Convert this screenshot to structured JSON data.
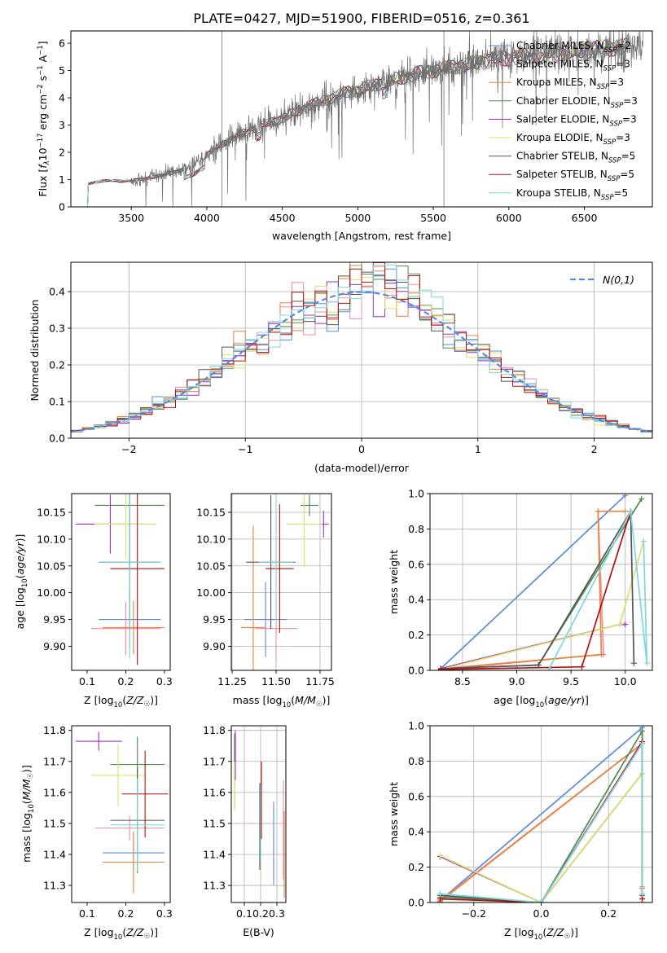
{
  "figure_title": "PLATE=0427, MJD=51900, FIBERID=0516, z=0.361",
  "series_colors": {
    "Chabrier MILES": "#5a8bd6",
    "Salpeter MILES": "#f08ca0",
    "Kroupa MILES": "#e8823c",
    "Chabrier ELODIE": "#4f8a4f",
    "Salpeter ELODIE": "#9b30c8",
    "Kroupa ELODIE": "#d9e36a",
    "Chabrier STELIB": "#555555",
    "Salpeter STELIB": "#b01010",
    "Kroupa STELIB": "#7fd6e0"
  },
  "chart_data": [
    {
      "id": "spectrum",
      "type": "line",
      "xlabel": "wavelength [Angstrom, rest frame]",
      "ylabel_parts": [
        "Flux [",
        "f",
        "λ",
        "10",
        "−17",
        " erg cm",
        "−2",
        " s",
        "−1",
        " A",
        "−1",
        "]"
      ],
      "xlim": [
        3100,
        6950
      ],
      "ylim": [
        0,
        6.45
      ],
      "xticks": [
        3500,
        4000,
        4500,
        5000,
        5500,
        6000,
        6500
      ],
      "yticks": [
        0,
        1,
        2,
        3,
        4,
        5,
        6
      ],
      "legend_position": "right",
      "legend": [
        {
          "series": "Chabrier MILES",
          "label": "Chabrier MILES, N",
          "sub": "SSP",
          "tail": "=2"
        },
        {
          "series": "Salpeter MILES",
          "label": "Salpeter MILES, N",
          "sub": "SSP",
          "tail": "=3"
        },
        {
          "series": "Kroupa MILES",
          "label": "Kroupa MILES, N",
          "sub": "SSP",
          "tail": "=3"
        },
        {
          "series": "Chabrier ELODIE",
          "label": "Chabrier ELODIE, N",
          "sub": "SSP",
          "tail": "=3"
        },
        {
          "series": "Salpeter ELODIE",
          "label": "Salpeter ELODIE, N",
          "sub": "SSP",
          "tail": "=3"
        },
        {
          "series": "Kroupa ELODIE",
          "label": "Kroupa ELODIE, N",
          "sub": "SSP",
          "tail": "=3"
        },
        {
          "series": "Chabrier STELIB",
          "label": "Chabrier STELIB, N",
          "sub": "SSP",
          "tail": "=5"
        },
        {
          "series": "Salpeter STELIB",
          "label": "Salpeter STELIB, N",
          "sub": "SSP",
          "tail": "=5"
        },
        {
          "series": "Kroupa STELIB",
          "label": "Kroupa STELIB, N",
          "sub": "SSP",
          "tail": "=5"
        }
      ],
      "continuum": [
        [
          3200,
          0.0
        ],
        [
          3215,
          0.85
        ],
        [
          3300,
          0.95
        ],
        [
          3500,
          0.95
        ],
        [
          3600,
          1.05
        ],
        [
          3700,
          1.15
        ],
        [
          3800,
          1.3
        ],
        [
          3900,
          1.5
        ],
        [
          4000,
          1.9
        ],
        [
          4100,
          2.3
        ],
        [
          4200,
          2.6
        ],
        [
          4300,
          2.85
        ],
        [
          4400,
          3.05
        ],
        [
          4500,
          3.25
        ],
        [
          4600,
          3.5
        ],
        [
          4700,
          3.75
        ],
        [
          4800,
          3.95
        ],
        [
          4900,
          4.15
        ],
        [
          5000,
          4.3
        ],
        [
          5100,
          4.45
        ],
        [
          5200,
          4.6
        ],
        [
          5300,
          4.75
        ],
        [
          5400,
          4.9
        ],
        [
          5500,
          5.0
        ],
        [
          5600,
          5.1
        ],
        [
          5700,
          5.2
        ],
        [
          5800,
          5.3
        ],
        [
          5900,
          5.4
        ],
        [
          6000,
          5.45
        ],
        [
          6100,
          5.5
        ],
        [
          6200,
          5.6
        ],
        [
          6300,
          5.65
        ],
        [
          6400,
          5.7
        ],
        [
          6500,
          5.75
        ],
        [
          6600,
          5.8
        ],
        [
          6700,
          5.85
        ],
        [
          6800,
          5.85
        ]
      ],
      "data_start": 3500,
      "data_end": 6890,
      "model_end": 6790,
      "spike_lines": [
        4100,
        5570
      ]
    },
    {
      "id": "residuals",
      "type": "step",
      "xlabel": "(data-model)/error",
      "ylabel": "Normed distribution",
      "xlim": [
        -2.5,
        2.5
      ],
      "ylim": [
        0,
        0.48
      ],
      "xticks": [
        -2,
        -1,
        0,
        1,
        2
      ],
      "yticks": [
        0.0,
        0.1,
        0.2,
        0.3,
        0.4
      ],
      "grid": true,
      "legend_position": "top-right",
      "reference_label": "N(0,1)",
      "reference_color": "#5a8bd6",
      "bin_width": 0.1
    },
    {
      "id": "age-vs-Z",
      "type": "scatter",
      "xlabel": "Z [log10(Z/Z☉)]",
      "ylabel": "age [log10(age/yr)]",
      "xlim": [
        0.06,
        0.315
      ],
      "ylim": [
        9.855,
        10.185
      ],
      "xticks": [
        0.1,
        0.2,
        0.3
      ],
      "yticks": [
        9.9,
        9.95,
        10.0,
        10.05,
        10.1,
        10.15
      ],
      "grid": false,
      "points": [
        {
          "series": "Chabrier MILES",
          "x": 0.21,
          "xerr": 0.08,
          "y": 9.95,
          "yerr": 0.055
        },
        {
          "series": "Salpeter MILES",
          "x": 0.2,
          "xerr": 0.09,
          "y": 9.933,
          "yerr": 0.05
        },
        {
          "series": "Kroupa MILES",
          "x": 0.22,
          "xerr": 0.08,
          "y": 9.935,
          "yerr": 0.05
        },
        {
          "series": "Chabrier ELODIE",
          "x": 0.21,
          "xerr": 0.09,
          "y": 10.163,
          "yerr": 0.12
        },
        {
          "series": "Salpeter ELODIE",
          "x": 0.16,
          "xerr": 0.09,
          "y": 10.128,
          "yerr": 0.055
        },
        {
          "series": "Kroupa ELODIE",
          "x": 0.2,
          "xerr": 0.08,
          "y": 10.128,
          "yerr": 0.065
        },
        {
          "series": "Chabrier STELIB",
          "x": 0.21,
          "xerr": 0.08,
          "y": 10.057,
          "yerr": 0.125
        },
        {
          "series": "Salpeter STELIB",
          "x": 0.23,
          "xerr": 0.07,
          "y": 10.045,
          "yerr": 0.18
        },
        {
          "series": "Kroupa STELIB",
          "x": 0.21,
          "xerr": 0.08,
          "y": 10.057,
          "yerr": 0.18
        }
      ]
    },
    {
      "id": "age-vs-mass",
      "type": "scatter",
      "xlabel": "mass [log10(M/M☉)]",
      "ylabel": "",
      "xlim": [
        11.245,
        11.815
      ],
      "ylim": [
        9.855,
        10.185
      ],
      "xticks": [
        11.25,
        11.5,
        11.75
      ],
      "yticks": [
        9.9,
        9.95,
        10.0,
        10.05,
        10.1,
        10.15
      ],
      "grid": true,
      "points": [
        {
          "series": "Chabrier MILES",
          "x": 11.44,
          "xerr": 0.12,
          "y": 9.95,
          "yerr": 0.07
        },
        {
          "series": "Salpeter MILES",
          "x": 11.5,
          "xerr": 0.12,
          "y": 9.933,
          "yerr": 0.06
        },
        {
          "series": "Kroupa MILES",
          "x": 11.37,
          "xerr": 0.07,
          "y": 9.935,
          "yerr": 0.19
        },
        {
          "series": "Chabrier ELODIE",
          "x": 11.69,
          "xerr": 0.05,
          "y": 10.163,
          "yerr": 0.02
        },
        {
          "series": "Salpeter ELODIE",
          "x": 11.77,
          "xerr": 0.03,
          "y": 10.128,
          "yerr": 0.025
        },
        {
          "series": "Kroupa ELODIE",
          "x": 11.66,
          "xerr": 0.1,
          "y": 10.128,
          "yerr": 0.08
        },
        {
          "series": "Chabrier STELIB",
          "x": 11.47,
          "xerr": 0.14,
          "y": 10.057,
          "yerr": 0.125
        },
        {
          "series": "Salpeter STELIB",
          "x": 11.52,
          "xerr": 0.08,
          "y": 10.045,
          "yerr": 0.12
        },
        {
          "series": "Kroupa STELIB",
          "x": 11.5,
          "xerr": 0.1,
          "y": 10.057,
          "yerr": 0.12
        }
      ]
    },
    {
      "id": "age-weights",
      "type": "line",
      "xlabel": "age [log10(age/yr)]",
      "ylabel": "mass weight",
      "xlim": [
        8.2,
        10.25
      ],
      "ylim": [
        0,
        1.0
      ],
      "xticks": [
        8.5,
        9.0,
        9.5,
        10.0
      ],
      "yticks": [
        0.0,
        0.2,
        0.4,
        0.6,
        0.8,
        1.0
      ],
      "grid": true,
      "series": [
        {
          "name": "Chabrier MILES",
          "x": [
            8.3,
            10.0
          ],
          "y": [
            0.01,
            0.99
          ]
        },
        {
          "name": "Salpeter MILES",
          "x": [
            8.3,
            9.8,
            9.75
          ],
          "y": [
            0.01,
            0.09,
            0.9
          ]
        },
        {
          "name": "Kroupa MILES",
          "x": [
            8.3,
            9.78,
            9.75,
            10.0
          ],
          "y": [
            0.005,
            0.09,
            0.9,
            0.9
          ]
        },
        {
          "name": "Chabrier ELODIE",
          "x": [
            8.3,
            9.2,
            10.15
          ],
          "y": [
            0.01,
            0.03,
            0.97
          ]
        },
        {
          "name": "Salpeter ELODIE",
          "x": [
            8.3,
            9.95,
            10.0
          ],
          "y": [
            0.01,
            0.26,
            0.26
          ]
        },
        {
          "name": "Kroupa ELODIE",
          "x": [
            8.3,
            9.95,
            10.17
          ],
          "y": [
            0.005,
            0.26,
            0.73
          ]
        },
        {
          "name": "Chabrier STELIB",
          "x": [
            8.3,
            9.2,
            10.05,
            10.08
          ],
          "y": [
            0.01,
            0.03,
            0.9,
            0.04
          ]
        },
        {
          "name": "Salpeter STELIB",
          "x": [
            8.3,
            9.6,
            10.05
          ],
          "y": [
            0.005,
            0.02,
            0.9
          ]
        },
        {
          "name": "Kroupa STELIB",
          "x": [
            9.3,
            10.05,
            10.2,
            10.17
          ],
          "y": [
            0.01,
            0.9,
            0.04,
            0.73
          ]
        }
      ]
    },
    {
      "id": "mass-vs-Z",
      "type": "scatter",
      "xlabel": "Z [log10(Z/Z☉)]",
      "ylabel": "mass [log10(M/M☉)]",
      "xlim": [
        0.06,
        0.315
      ],
      "ylim": [
        11.245,
        11.815
      ],
      "xticks": [
        0.1,
        0.2,
        0.3
      ],
      "yticks": [
        11.3,
        11.4,
        11.5,
        11.6,
        11.7,
        11.8
      ],
      "grid": false,
      "points": [
        {
          "series": "Chabrier MILES",
          "x": 0.22,
          "xerr": 0.08,
          "y": 11.405,
          "yerr": 0.06
        },
        {
          "series": "Salpeter MILES",
          "x": 0.21,
          "xerr": 0.09,
          "y": 11.485,
          "yerr": 0.04
        },
        {
          "series": "Kroupa MILES",
          "x": 0.22,
          "xerr": 0.08,
          "y": 11.375,
          "yerr": 0.1
        },
        {
          "series": "Chabrier ELODIE",
          "x": 0.23,
          "xerr": 0.07,
          "y": 11.69,
          "yerr": 0.09
        },
        {
          "series": "Salpeter ELODIE",
          "x": 0.13,
          "xerr": 0.06,
          "y": 11.765,
          "yerr": 0.03
        },
        {
          "series": "Kroupa ELODIE",
          "x": 0.18,
          "xerr": 0.07,
          "y": 11.655,
          "yerr": 0.1
        },
        {
          "series": "Chabrier STELIB",
          "x": 0.23,
          "xerr": 0.07,
          "y": 11.51,
          "yerr": 0.17
        },
        {
          "series": "Salpeter STELIB",
          "x": 0.25,
          "xerr": 0.06,
          "y": 11.595,
          "yerr": 0.14
        },
        {
          "series": "Kroupa STELIB",
          "x": 0.23,
          "xerr": 0.07,
          "y": 11.495,
          "yerr": 0.15
        }
      ]
    },
    {
      "id": "mass-vs-EBV",
      "type": "scatter",
      "xlabel": "E(B-V)",
      "ylabel": "",
      "xlim": [
        0.02,
        0.355
      ],
      "ylim": [
        11.245,
        11.815
      ],
      "xticks": [
        0.1,
        0.2,
        0.3
      ],
      "yticks": [
        11.3,
        11.4,
        11.5,
        11.6,
        11.7,
        11.8
      ],
      "grid": true,
      "points": [
        {
          "series": "Chabrier MILES",
          "x": 0.28,
          "y": 11.435,
          "yerr": 0.135
        },
        {
          "series": "Salpeter MILES",
          "x": 0.34,
          "y": 11.48,
          "yerr": 0.16
        },
        {
          "series": "Kroupa MILES",
          "x": 0.345,
          "y": 11.4,
          "yerr": 0.14
        },
        {
          "series": "Chabrier ELODIE",
          "x": 0.04,
          "y": 11.67,
          "yerr": 0.12
        },
        {
          "series": "Salpeter ELODIE",
          "x": 0.045,
          "y": 11.72,
          "yerr": 0.08
        },
        {
          "series": "Kroupa ELODIE",
          "x": 0.04,
          "y": 11.62,
          "yerr": 0.08
        },
        {
          "series": "Chabrier STELIB",
          "x": 0.195,
          "y": 11.49,
          "yerr": 0.14
        },
        {
          "series": "Salpeter STELIB",
          "x": 0.205,
          "y": 11.575,
          "yerr": 0.125
        },
        {
          "series": "Kroupa STELIB",
          "x": 0.2,
          "y": 11.5,
          "yerr": 0.12
        }
      ]
    },
    {
      "id": "Z-weights",
      "type": "line",
      "xlabel": "Z [log10(Z/Z☉)]",
      "ylabel": "mass weight",
      "xlim": [
        -0.33,
        0.33
      ],
      "ylim": [
        0,
        1.0
      ],
      "xticks": [
        -0.2,
        0.0,
        0.2
      ],
      "yticks": [
        0.0,
        0.2,
        0.4,
        0.6,
        0.8,
        1.0
      ],
      "grid": true,
      "series": [
        {
          "name": "Chabrier MILES",
          "x": [
            -0.3,
            0.3,
            0.3
          ],
          "y": [
            0.01,
            0.99,
            0.0
          ]
        },
        {
          "name": "Salpeter MILES",
          "x": [
            -0.3,
            0.3,
            0.3
          ],
          "y": [
            0.01,
            0.9,
            0.09
          ]
        },
        {
          "name": "Kroupa MILES",
          "x": [
            -0.3,
            0.3,
            0.3
          ],
          "y": [
            0.005,
            0.9,
            0.08
          ]
        },
        {
          "name": "Chabrier ELODIE",
          "x": [
            -0.3,
            0.0,
            0.3,
            0.3
          ],
          "y": [
            0.03,
            0.0,
            0.97,
            0.0
          ]
        },
        {
          "name": "Salpeter ELODIE",
          "x": [
            -0.3,
            0.0,
            0.3,
            0.3
          ],
          "y": [
            0.26,
            0.0,
            0.73,
            0.0
          ]
        },
        {
          "name": "Kroupa ELODIE",
          "x": [
            -0.3,
            0.0,
            0.3,
            0.3
          ],
          "y": [
            0.265,
            0.0,
            0.73,
            0.0
          ]
        },
        {
          "name": "Chabrier STELIB",
          "x": [
            -0.3,
            0.0,
            0.3,
            0.3
          ],
          "y": [
            0.04,
            0.0,
            0.9,
            0.04
          ]
        },
        {
          "name": "Salpeter STELIB",
          "x": [
            -0.3,
            0.0,
            0.3,
            0.3
          ],
          "y": [
            0.02,
            0.0,
            0.91,
            0.02
          ]
        },
        {
          "name": "Kroupa STELIB",
          "x": [
            -0.3,
            0.0,
            0.3,
            0.3
          ],
          "y": [
            0.05,
            0.0,
            0.9,
            0.05
          ]
        }
      ]
    }
  ]
}
